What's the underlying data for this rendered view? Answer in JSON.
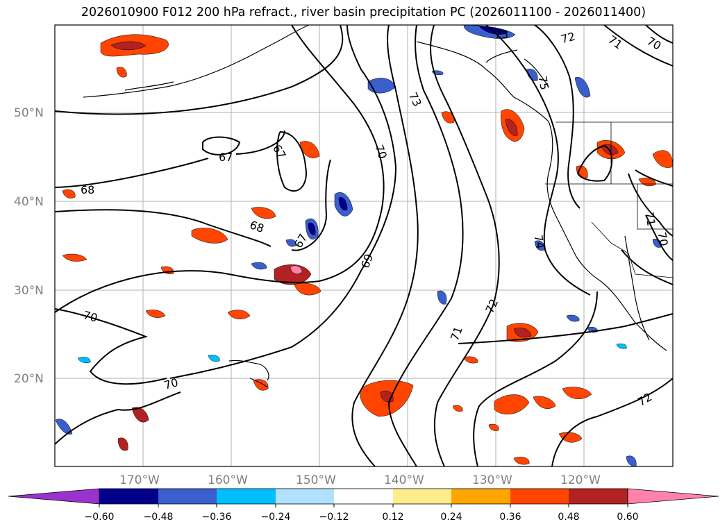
{
  "title": "2026010900 F012 200 hPa refract., river basin precipitation PC (2026011100 - 2026011400)",
  "lat_labels": [
    "50°N",
    "40°N",
    "30°N",
    "20°N"
  ],
  "lon_labels": [
    "170°W",
    "160°W",
    "150°W",
    "140°W",
    "130°W",
    "120°W"
  ],
  "contour_labels": [
    "67",
    "67",
    "68",
    "68",
    "67",
    "69",
    "70",
    "70",
    "70",
    "71",
    "72",
    "73",
    "73",
    "72",
    "71",
    "70",
    "75",
    "74",
    "71",
    "70",
    "72"
  ],
  "colorbar": {
    "ticks": [
      "−0.60",
      "−0.48",
      "−0.36",
      "−0.24",
      "−0.12",
      "0.12",
      "0.24",
      "0.36",
      "0.48",
      "0.60"
    ],
    "colors": [
      "#9a32cd",
      "#00008b",
      "#3a5fcd",
      "#00bfff",
      "#b0e2ff",
      "#ffffff",
      "#ffec8b",
      "#ffa500",
      "#ff4500",
      "#b22222",
      "#ff82ab"
    ]
  }
}
